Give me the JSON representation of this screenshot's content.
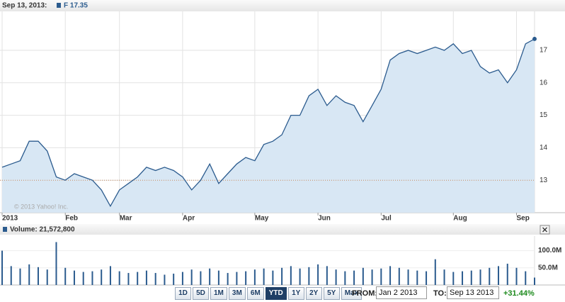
{
  "header": {
    "date": "Sep 13, 2013:"
  },
  "chart_data": [
    {
      "type": "area",
      "legend_label": "F 17.35",
      "color": "#2b5b8e",
      "fill": "#d8e7f4",
      "categories": [
        "2013",
        null,
        null,
        null,
        null,
        null,
        null,
        "Feb",
        null,
        null,
        null,
        null,
        null,
        "Mar",
        null,
        null,
        null,
        null,
        null,
        null,
        "Apr",
        null,
        null,
        null,
        null,
        null,
        null,
        null,
        "May",
        null,
        null,
        null,
        null,
        null,
        null,
        "Jun",
        null,
        null,
        null,
        null,
        null,
        null,
        "Jul",
        null,
        null,
        null,
        null,
        null,
        null,
        null,
        "Aug",
        null,
        null,
        null,
        null,
        null,
        null,
        "Sep",
        null,
        null
      ],
      "values": [
        13.4,
        13.5,
        13.6,
        14.2,
        14.2,
        13.9,
        13.1,
        13.0,
        13.2,
        13.1,
        13.0,
        12.7,
        12.2,
        12.7,
        12.9,
        13.1,
        13.4,
        13.3,
        13.4,
        13.3,
        13.1,
        12.7,
        13.0,
        13.5,
        12.9,
        13.2,
        13.5,
        13.7,
        13.6,
        14.1,
        14.2,
        14.4,
        15.0,
        15.0,
        15.6,
        15.8,
        15.3,
        15.6,
        15.4,
        15.3,
        14.8,
        15.3,
        15.8,
        16.7,
        16.9,
        17.0,
        16.9,
        17.0,
        17.1,
        17.0,
        17.2,
        16.9,
        17.0,
        16.5,
        16.3,
        16.4,
        16.0,
        16.4,
        17.2,
        17.35
      ],
      "reference": 13,
      "reference_color": "#c8885a",
      "ylim": [
        12,
        18.2
      ],
      "yticks": [
        13,
        14,
        15,
        16,
        17
      ],
      "grid": true,
      "watermark": "© 2013 Yahoo! Inc."
    },
    {
      "type": "bar",
      "legend_label": "Volume: 21,572,800",
      "color": "#2b5b8e",
      "values": [
        100000000,
        55000000,
        48000000,
        60000000,
        52000000,
        45000000,
        125000000,
        50000000,
        42000000,
        38000000,
        40000000,
        45000000,
        55000000,
        40000000,
        35000000,
        38000000,
        42000000,
        35000000,
        30000000,
        33000000,
        38000000,
        45000000,
        40000000,
        48000000,
        42000000,
        35000000,
        38000000,
        40000000,
        45000000,
        48000000,
        42000000,
        50000000,
        55000000,
        48000000,
        52000000,
        60000000,
        55000000,
        45000000,
        40000000,
        42000000,
        50000000,
        45000000,
        48000000,
        55000000,
        50000000,
        45000000,
        42000000,
        40000000,
        75000000,
        45000000,
        38000000,
        40000000,
        42000000,
        45000000,
        50000000,
        55000000,
        62000000,
        50000000,
        40000000,
        21572800
      ],
      "ylim": [
        0,
        142500000
      ],
      "yticks": [
        {
          "value": 50000000,
          "label": "50.0M"
        },
        {
          "value": 100000000,
          "label": "100.0M"
        }
      ]
    }
  ],
  "controls": {
    "ranges": [
      "1D",
      "5D",
      "1M",
      "3M",
      "6M",
      "YTD",
      "1Y",
      "2Y",
      "5Y",
      "Max"
    ],
    "active_range": "YTD",
    "from_label": "FROM:",
    "from": "Jan 2 2013",
    "to_label": "TO:",
    "to": "Sep 13 2013",
    "change": "+31.44%"
  }
}
